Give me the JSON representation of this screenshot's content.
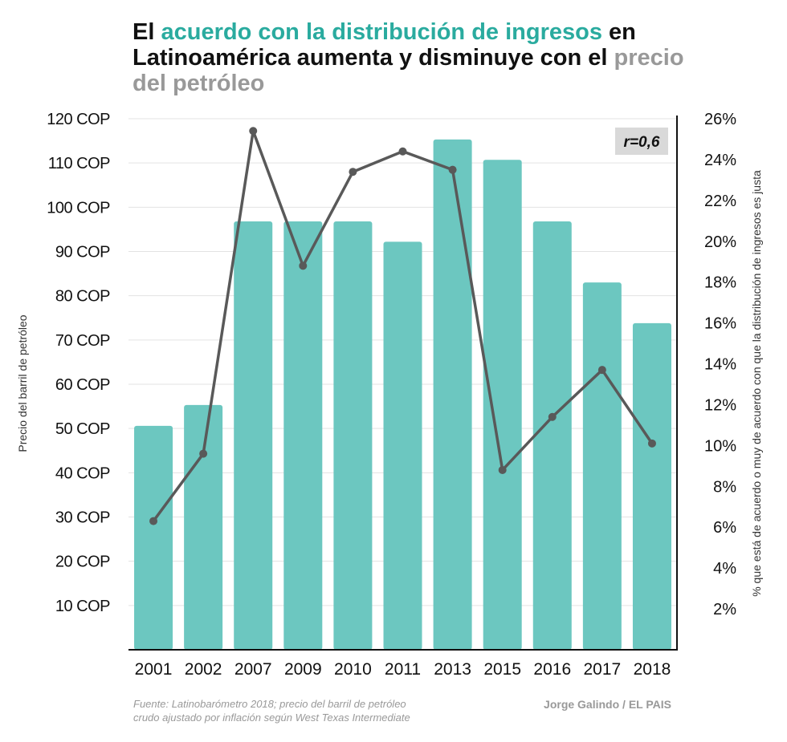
{
  "title": {
    "part1": "El ",
    "part2_highlight": "acuerdo con la distribución de ingresos",
    "part3": " en Latinoamérica aumenta y disminuye con el ",
    "part4_gray": "precio del petróleo"
  },
  "colors": {
    "bar": "#6cc7c0",
    "line": "#595959",
    "highlight": "#2aab9f",
    "annotation_bg": "#d9d9d9"
  },
  "chart_data": {
    "type": "bar+line",
    "categories": [
      "2001",
      "2002",
      "2007",
      "2009",
      "2010",
      "2011",
      "2013",
      "2015",
      "2016",
      "2017",
      "2018"
    ],
    "series": [
      {
        "axis": "left",
        "type": "bar",
        "values": [
          50.6,
          55.3,
          96.8,
          96.8,
          96.8,
          92.2,
          115.3,
          110.7,
          96.8,
          83.0,
          73.8
        ]
      },
      {
        "axis": "right",
        "type": "line",
        "values": [
          6.3,
          9.6,
          25.4,
          18.8,
          23.4,
          24.4,
          23.5,
          8.8,
          11.4,
          13.7,
          10.1
        ]
      }
    ],
    "ylabel_left": "Precio del barril de petróleo",
    "ylabel_right": "% que está de acuerdo o muy de acuerdo con que la distribución de ingresos es justa",
    "ylim_left": [
      0,
      120
    ],
    "ylim_right": [
      0,
      26
    ],
    "left_ticks": [
      "10 COP",
      "20 COP",
      "30 COP",
      "40 COP",
      "50 COP",
      "60 COP",
      "70 COP",
      "80 COP",
      "90 COP",
      "100 COP",
      "110 COP",
      "120 COP"
    ],
    "right_ticks": [
      "2%",
      "4%",
      "6%",
      "8%",
      "10%",
      "12%",
      "14%",
      "16%",
      "18%",
      "20%",
      "22%",
      "24%",
      "26%"
    ],
    "annotation": "r=0,6",
    "grid": true
  },
  "footer": {
    "source_line1": "Fuente: Latinobarómetro 2018; precio del barril de petróleo",
    "source_line2": "crudo ajustado por inflación según West Texas Intermediate",
    "credit": "Jorge Galindo / EL PAIS"
  }
}
